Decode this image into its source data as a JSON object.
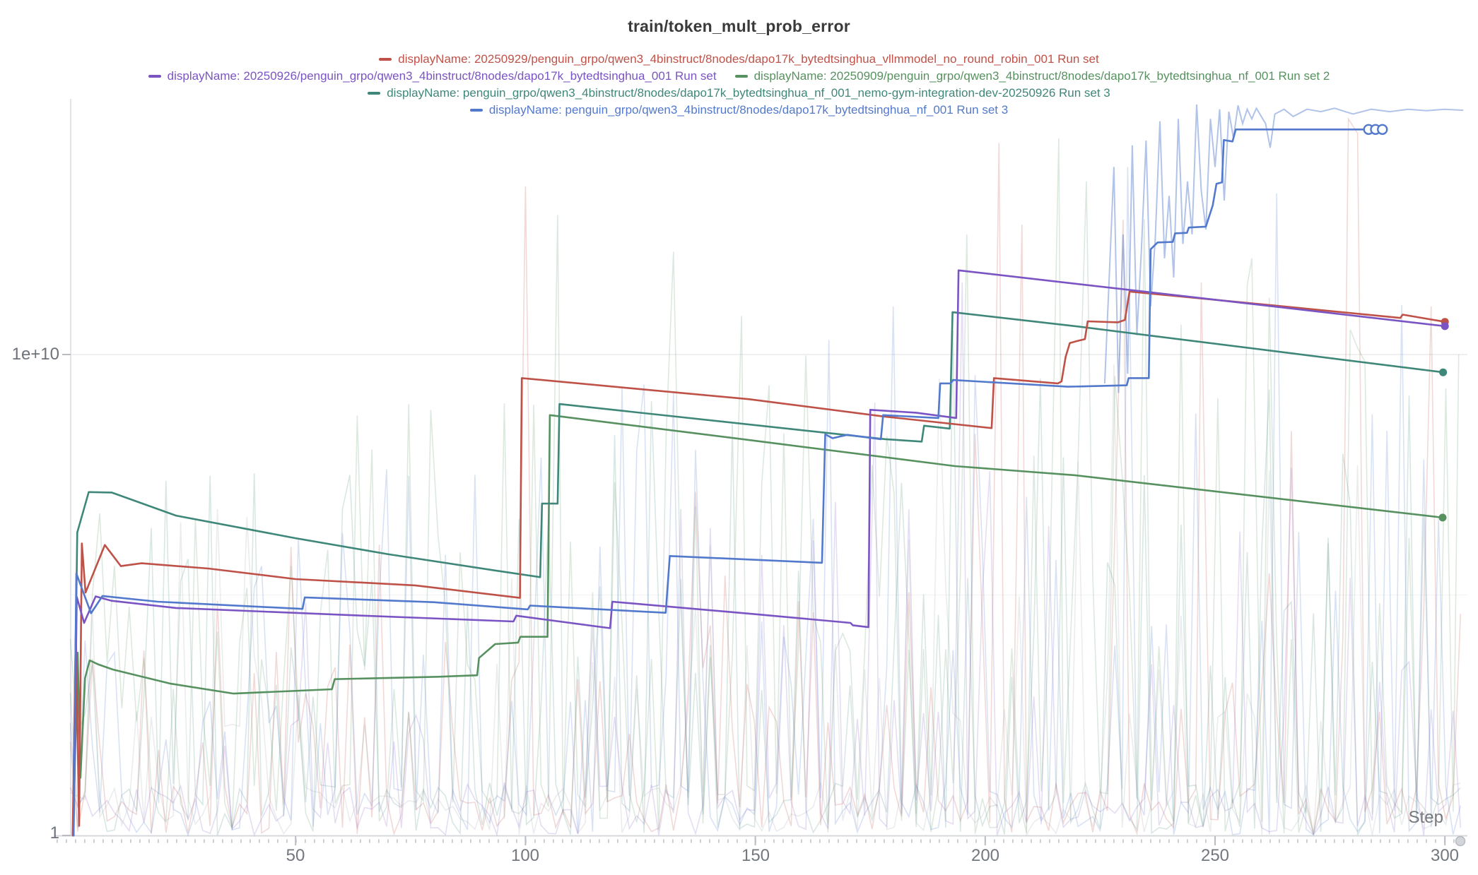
{
  "chart_data": {
    "type": "line",
    "title": "train/token_mult_prob_error",
    "xlabel": "Step",
    "x_axis": {
      "ticks": [
        50,
        100,
        150,
        200,
        250,
        300
      ],
      "tick_labels": [
        "50",
        "100",
        "150",
        "200",
        "250",
        "300"
      ],
      "range": [
        0,
        305
      ]
    },
    "y_axis": {
      "scale": "log",
      "tick_labels": [
        "1e+10",
        "1"
      ],
      "tick_values": [
        10000000000,
        1
      ],
      "range_log10": [
        0,
        15.3
      ],
      "gridline_logs": [
        10,
        5
      ],
      "grid": "horizontal-faint"
    },
    "series": [
      {
        "id": "run1-red",
        "label": "displayName: 20250929/penguin_grpo/qwen3_4binstruct/8nodes/dapo17k_bytedtsinghua_vllmmodel_no_round_robin_001 Run set",
        "color": "#bf5248",
        "end_dot": true,
        "points": [
          [
            1.5,
            0
          ],
          [
            2.2,
            4.3
          ],
          [
            2.9,
            0.2
          ],
          [
            3.5,
            6.07
          ],
          [
            4.3,
            5.05
          ],
          [
            8.5,
            6.04
          ],
          [
            12,
            5.6
          ],
          [
            16.5,
            5.66
          ],
          [
            31,
            5.55
          ],
          [
            50,
            5.33
          ],
          [
            76,
            5.2
          ],
          [
            98.8,
            4.94
          ],
          [
            99.2,
            9.51
          ],
          [
            124,
            9.29
          ],
          [
            148.7,
            9.07
          ],
          [
            178,
            8.71
          ],
          [
            201.4,
            8.47
          ],
          [
            201.9,
            9.51
          ],
          [
            215.8,
            9.4
          ],
          [
            216.6,
            9.44
          ],
          [
            217.5,
            9.95
          ],
          [
            218.4,
            10.24
          ],
          [
            220,
            10.28
          ],
          [
            221.7,
            10.32
          ],
          [
            222.3,
            10.69
          ],
          [
            228.9,
            10.67
          ],
          [
            230.4,
            10.72
          ],
          [
            231.4,
            11.31
          ],
          [
            265,
            11.0
          ],
          [
            290.3,
            10.76
          ],
          [
            290.8,
            10.83
          ],
          [
            300,
            10.68
          ]
        ]
      },
      {
        "id": "run2-purple",
        "label": "displayName: 20250926/penguin_grpo/qwen3_4binstruct/8nodes/dapo17k_bytedtsinghua_001 Run set",
        "color": "#7b54c4",
        "end_dot": true,
        "points": [
          [
            1.7,
            0
          ],
          [
            2.4,
            4.96
          ],
          [
            4,
            4.42
          ],
          [
            6.5,
            4.97
          ],
          [
            10,
            4.88
          ],
          [
            24,
            4.73
          ],
          [
            62,
            4.58
          ],
          [
            97.4,
            4.45
          ],
          [
            98,
            4.57
          ],
          [
            118.4,
            4.31
          ],
          [
            118.9,
            4.86
          ],
          [
            150,
            4.6
          ],
          [
            170.7,
            4.42
          ],
          [
            171.2,
            4.37
          ],
          [
            174.6,
            4.33
          ],
          [
            175,
            8.85
          ],
          [
            185,
            8.79
          ],
          [
            193.7,
            8.68
          ],
          [
            194.2,
            11.75
          ],
          [
            240,
            11.25
          ],
          [
            300,
            10.59
          ]
        ]
      },
      {
        "id": "run3-green",
        "label": "displayName: 20250909/penguin_grpo/qwen3_4binstruct/8nodes/dapo17k_bytedtsinghua_nf_001 Run set 2",
        "color": "#579160",
        "end_dot": true,
        "points": [
          [
            1.6,
            0
          ],
          [
            2.6,
            3.8
          ],
          [
            3.2,
            1.2
          ],
          [
            4.2,
            3.27
          ],
          [
            5.2,
            3.64
          ],
          [
            7,
            3.56
          ],
          [
            10.3,
            3.45
          ],
          [
            22.6,
            3.16
          ],
          [
            36.5,
            2.95
          ],
          [
            57.9,
            3.04
          ],
          [
            58.5,
            3.25
          ],
          [
            81,
            3.3
          ],
          [
            89.5,
            3.33
          ],
          [
            89.9,
            3.69
          ],
          [
            93.4,
            3.98
          ],
          [
            98.4,
            4.01
          ],
          [
            98.9,
            4.13
          ],
          [
            104.8,
            4.13
          ],
          [
            105.3,
            8.74
          ],
          [
            148.8,
            8.22
          ],
          [
            193.4,
            7.68
          ],
          [
            219.5,
            7.49
          ],
          [
            299.5,
            6.61
          ]
        ]
      },
      {
        "id": "run4-teal",
        "label": "displayName: penguin_grpo/qwen3_4binstruct/8nodes/dapo17k_bytedtsinghua_nf_001_nemo-gym-integration-dev-20250926 Run set 3",
        "color": "#3f8779",
        "end_dot": true,
        "points": [
          [
            1.6,
            0
          ],
          [
            2.5,
            6.3
          ],
          [
            5,
            7.14
          ],
          [
            10,
            7.13
          ],
          [
            24,
            6.65
          ],
          [
            50,
            6.18
          ],
          [
            70,
            5.85
          ],
          [
            93.4,
            5.51
          ],
          [
            103.2,
            5.37
          ],
          [
            103.6,
            6.9
          ],
          [
            107,
            6.9
          ],
          [
            107.4,
            8.97
          ],
          [
            178.3,
            8.24
          ],
          [
            186.2,
            8.19
          ],
          [
            186.7,
            8.52
          ],
          [
            192.3,
            8.46
          ],
          [
            192.9,
            10.88
          ],
          [
            219.5,
            10.59
          ],
          [
            299.6,
            9.63
          ]
        ]
      },
      {
        "id": "run5-blue",
        "label": "displayName: penguin_grpo/qwen3_4binstruct/8nodes/dapo17k_bytedtsinghua_nf_001 Run set 3",
        "color": "#5379cd",
        "end_dot": false,
        "end_circles": [
          283.4,
          284.9,
          286.4
        ],
        "points": [
          [
            1.7,
            0
          ],
          [
            2.3,
            5.45
          ],
          [
            5.5,
            4.62
          ],
          [
            8,
            4.98
          ],
          [
            20,
            4.86
          ],
          [
            51.5,
            4.71
          ],
          [
            52,
            4.95
          ],
          [
            80,
            4.85
          ],
          [
            100.5,
            4.7
          ],
          [
            101,
            4.78
          ],
          [
            130.5,
            4.63
          ],
          [
            131.4,
            5.81
          ],
          [
            164.5,
            5.67
          ],
          [
            165.2,
            8.34
          ],
          [
            166.8,
            8.26
          ],
          [
            170,
            8.33
          ],
          [
            177.3,
            8.24
          ],
          [
            177.8,
            8.74
          ],
          [
            189.8,
            8.68
          ],
          [
            190.2,
            9.4
          ],
          [
            192.5,
            9.4
          ],
          [
            193,
            9.47
          ],
          [
            218,
            9.33
          ],
          [
            230.8,
            9.36
          ],
          [
            231.2,
            9.51
          ],
          [
            235.6,
            9.51
          ],
          [
            236,
            12.19
          ],
          [
            237.5,
            12.33
          ],
          [
            240.8,
            12.34
          ],
          [
            241.3,
            12.52
          ],
          [
            243.9,
            12.53
          ],
          [
            244.3,
            12.64
          ],
          [
            248,
            12.66
          ],
          [
            249.5,
            13.1
          ],
          [
            250.3,
            13.55
          ],
          [
            251.5,
            13.58
          ],
          [
            251.9,
            14.46
          ],
          [
            253.8,
            14.43
          ],
          [
            254.5,
            14.68
          ],
          [
            282.6,
            14.68
          ]
        ]
      }
    ],
    "raw_blue_tail": {
      "series": "run5-blue",
      "opacity": 0.45,
      "points": [
        [
          226,
          9.4
        ],
        [
          228,
          13.9
        ],
        [
          229,
          9.2
        ],
        [
          230,
          12.5
        ],
        [
          231,
          9.6
        ],
        [
          232,
          14.35
        ],
        [
          233,
          10.4
        ],
        [
          234,
          12.2
        ],
        [
          235,
          14.45
        ],
        [
          236,
          11.0
        ],
        [
          237,
          12.4
        ],
        [
          238,
          14.85
        ],
        [
          239,
          12.0
        ],
        [
          240,
          13.3
        ],
        [
          241,
          11.6
        ],
        [
          242,
          14.9
        ],
        [
          243,
          12.3
        ],
        [
          244,
          13.6
        ],
        [
          245,
          12.5
        ],
        [
          246,
          15.2
        ],
        [
          247,
          13.4
        ],
        [
          248,
          12.6
        ],
        [
          249,
          14.9
        ],
        [
          250,
          13.9
        ],
        [
          251,
          15.1
        ],
        [
          252,
          13.2
        ],
        [
          253,
          15.05
        ],
        [
          254,
          14.5
        ],
        [
          255,
          15.18
        ],
        [
          256,
          14.8
        ],
        [
          257,
          15.1
        ],
        [
          258,
          14.9
        ],
        [
          259,
          15.12
        ],
        [
          261,
          14.8
        ],
        [
          262,
          14.3
        ],
        [
          263,
          15.0
        ],
        [
          265,
          15.1
        ],
        [
          267,
          14.95
        ],
        [
          270,
          15.1
        ],
        [
          273,
          15.05
        ],
        [
          276,
          15.12
        ],
        [
          280,
          15.0
        ],
        [
          284,
          15.1
        ],
        [
          288,
          15.05
        ],
        [
          292,
          15.1
        ],
        [
          296,
          15.07
        ],
        [
          300,
          15.1
        ],
        [
          304,
          15.08
        ]
      ]
    },
    "background_noise": [
      {
        "series": "run1-red",
        "opacity": 0.22,
        "seed": 11,
        "density": 0.34,
        "max_profile": [
          [
            0,
            5.5
          ],
          [
            90,
            6.5
          ],
          [
            99,
            12
          ],
          [
            103,
            6.5
          ],
          [
            150,
            7.5
          ],
          [
            200,
            8.5
          ],
          [
            205,
            13
          ],
          [
            212,
            8
          ],
          [
            240,
            8.5
          ],
          [
            305,
            8.5
          ]
        ],
        "peaks": [
          [
            100,
            13.5
          ],
          [
            203,
            14.4
          ],
          [
            208,
            12.7
          ],
          [
            230,
            12.8
          ],
          [
            247,
            11.5
          ],
          [
            279,
            14.9
          ],
          [
            281,
            14.6
          ],
          [
            297,
            11
          ]
        ]
      },
      {
        "series": "run3-green",
        "opacity": 0.2,
        "seed": 23,
        "density": 0.42,
        "max_profile": [
          [
            0,
            7.5
          ],
          [
            60,
            9
          ],
          [
            110,
            12
          ],
          [
            200,
            13
          ],
          [
            305,
            12.5
          ]
        ],
        "peaks": [
          [
            107,
            12.9
          ],
          [
            147,
            10.8
          ],
          [
            196,
            12.5
          ],
          [
            216,
            14.5
          ],
          [
            222,
            13.6
          ],
          [
            258,
            12
          ],
          [
            303,
            10
          ]
        ]
      },
      {
        "series": "run4-teal",
        "opacity": 0.2,
        "seed": 37,
        "density": 0.3,
        "max_profile": [
          [
            0,
            7
          ],
          [
            100,
            9
          ],
          [
            305,
            9.5
          ]
        ],
        "peaks": [
          [
            193,
            10.5
          ],
          [
            212,
            9.5
          ]
        ]
      },
      {
        "series": "run2-purple",
        "opacity": 0.2,
        "seed": 51,
        "density": 0.2,
        "max_profile": [
          [
            0,
            5
          ],
          [
            150,
            8
          ],
          [
            305,
            8.5
          ]
        ],
        "peaks": [
          [
            176,
            9
          ],
          [
            195,
            11.5
          ]
        ]
      },
      {
        "series": "run5-blue",
        "opacity": 0.22,
        "seed": 67,
        "density": 0.3,
        "max_profile": [
          [
            0,
            6
          ],
          [
            100,
            9
          ],
          [
            160,
            10.5
          ],
          [
            228,
            13
          ],
          [
            235,
            14.5
          ],
          [
            305,
            15
          ]
        ],
        "peaks": [
          [
            166,
            10.3
          ],
          [
            180,
            11
          ],
          [
            231,
            13.9
          ]
        ]
      },
      {
        "series": "gray",
        "color": "#9aa0a6",
        "opacity": 0.2,
        "seed": 83,
        "density": 0.24,
        "max_profile": [
          [
            0,
            7.5
          ],
          [
            305,
            8
          ]
        ],
        "peaks": [
          [
            190,
            9.5
          ],
          [
            228,
            9.8
          ]
        ]
      }
    ],
    "axis_colors": {
      "axis_line": "#d6d8dc",
      "left_axis_line": "#e3e4e8",
      "gridline_major": "#ebebee",
      "gridline_minor": "#f3f3f5",
      "tick": "#b9bdc3",
      "minor_tick_dots": "#c6c9ce",
      "handle_fill": "#d2d5da",
      "handle_stroke": "#b6bac1"
    }
  }
}
